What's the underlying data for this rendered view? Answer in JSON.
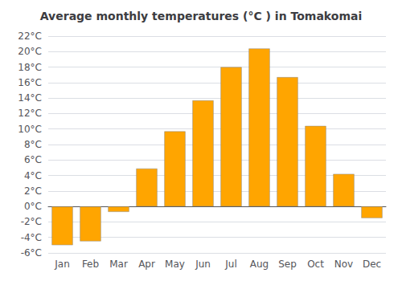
{
  "chart_data": {
    "type": "bar",
    "title": "Average monthly temperatures (°C ) in Tomakomai",
    "categories": [
      "Jan",
      "Feb",
      "Mar",
      "Apr",
      "May",
      "Jun",
      "Jul",
      "Aug",
      "Sep",
      "Oct",
      "Nov",
      "Dec"
    ],
    "values": [
      -5.0,
      -4.5,
      -0.7,
      4.9,
      9.7,
      13.7,
      18.0,
      20.4,
      16.7,
      10.4,
      4.2,
      -1.5
    ],
    "color": "#FFA500",
    "ylim": [
      -6,
      22
    ],
    "yticks": [
      {
        "value": -6,
        "label": "-6°C"
      },
      {
        "value": -4,
        "label": "-4°C"
      },
      {
        "value": -2,
        "label": "-2°C"
      },
      {
        "value": 0,
        "label": "0°C"
      },
      {
        "value": 2,
        "label": "2°C"
      },
      {
        "value": 4,
        "label": "4°C"
      },
      {
        "value": 6,
        "label": "6°C"
      },
      {
        "value": 8,
        "label": "8°C"
      },
      {
        "value": 10,
        "label": "10°C"
      },
      {
        "value": 12,
        "label": "12°C"
      },
      {
        "value": 14,
        "label": "14°C"
      },
      {
        "value": 16,
        "label": "16°C"
      },
      {
        "value": 18,
        "label": "18°C"
      },
      {
        "value": 20,
        "label": "20°C"
      },
      {
        "value": 22,
        "label": "22°C"
      }
    ],
    "grid": true
  }
}
